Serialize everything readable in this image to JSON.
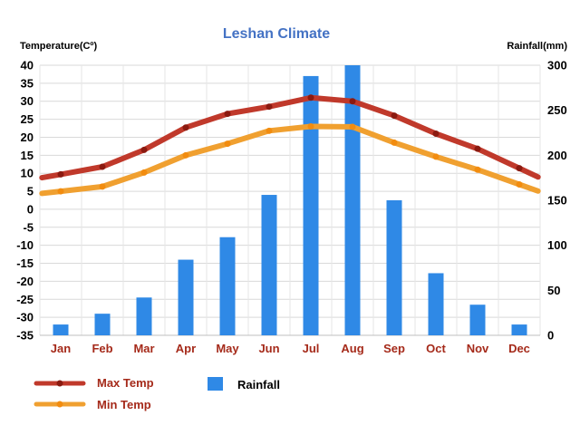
{
  "chart_data": {
    "type": "bar+line",
    "title": "Leshan Climate",
    "y_left_label": "Temperature(Cº)",
    "y_right_label": "Rainfall(mm)",
    "y_left_range": [
      -35,
      40
    ],
    "y_left_ticks": [
      "40",
      "35",
      "30",
      "25",
      "20",
      "15",
      "10",
      "5",
      "0",
      "-5",
      "-10",
      "-15",
      "-20",
      "-25",
      "-30",
      "-35"
    ],
    "y_right_range": [
      0,
      300
    ],
    "y_right_ticks": [
      "300",
      "250",
      "200",
      "150",
      "100",
      "50",
      "0"
    ],
    "categories": [
      "Jan",
      "Feb",
      "Mar",
      "Apr",
      "May",
      "Jun",
      "Jul",
      "Aug",
      "Sep",
      "Oct",
      "Nov",
      "Dec"
    ],
    "grid": true,
    "legend_position": "bottom",
    "series": [
      {
        "name": "Max Temp",
        "type": "line",
        "axis": "left",
        "color": "#c0392b",
        "marker_color": "#8b1a10",
        "values": [
          9.7,
          11.8,
          16.5,
          22.7,
          26.5,
          28.5,
          31.0,
          30.0,
          26.0,
          21.0,
          16.8,
          11.4
        ]
      },
      {
        "name": "Min Temp",
        "type": "line",
        "axis": "left",
        "color": "#f0a030",
        "marker_color": "#f28c0f",
        "values": [
          5.0,
          6.3,
          10.2,
          15.0,
          18.2,
          21.8,
          23.0,
          22.9,
          18.5,
          14.6,
          11.0,
          6.9
        ]
      },
      {
        "name": "Rainfall",
        "type": "bar",
        "axis": "right",
        "color": "#2f89e6",
        "values": [
          12,
          24,
          42,
          84,
          109,
          156,
          288,
          300,
          150,
          69,
          34,
          12
        ]
      }
    ],
    "colors": {
      "title": "#4472c4",
      "month_labels": "#a52a1a"
    }
  }
}
